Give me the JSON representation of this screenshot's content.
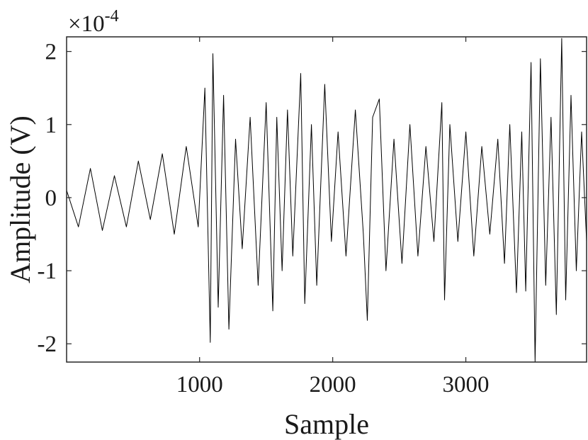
{
  "chart_data": {
    "type": "line",
    "title": "",
    "xlabel": "Sample",
    "ylabel": "Amplitude (V)",
    "y_exponent_base": "×10",
    "y_exponent": "-4",
    "xlim": [
      1,
      3907
    ],
    "ylim": [
      -2.25,
      2.2
    ],
    "xticks": [
      {
        "value": 1000,
        "label": "1000"
      },
      {
        "value": 2000,
        "label": "2000"
      },
      {
        "value": 3000,
        "label": "3000"
      }
    ],
    "yticks": [
      {
        "value": 2,
        "label": "2"
      },
      {
        "value": 1,
        "label": "1"
      },
      {
        "value": 0,
        "label": "0"
      },
      {
        "value": -1,
        "label": "-1"
      },
      {
        "value": -2,
        "label": "-2"
      }
    ],
    "grid": false,
    "box": true,
    "line_color": "#000000",
    "series": [
      {
        "x": [
          1,
          90,
          180,
          270,
          360,
          450,
          540,
          630,
          720,
          810,
          900,
          990,
          1040,
          1080,
          1100,
          1140,
          1180,
          1220,
          1270,
          1320,
          1380,
          1440,
          1500,
          1550,
          1580,
          1620,
          1660,
          1700,
          1760,
          1790,
          1840,
          1880,
          1940,
          1990,
          2040,
          2100,
          2170,
          2230,
          2260,
          2300,
          2350,
          2400,
          2460,
          2520,
          2580,
          2640,
          2700,
          2760,
          2820,
          2840,
          2880,
          2940,
          3000,
          3060,
          3120,
          3180,
          3240,
          3290,
          3330,
          3380,
          3420,
          3450,
          3490,
          3520,
          3560,
          3600,
          3640,
          3680,
          3720,
          3750,
          3790,
          3830,
          3870,
          3907
        ],
        "y": [
          0.1,
          -0.4,
          0.4,
          -0.45,
          0.3,
          -0.4,
          0.5,
          -0.3,
          0.6,
          -0.5,
          0.7,
          -0.4,
          1.5,
          -1.98,
          1.97,
          -1.5,
          1.4,
          -1.8,
          0.8,
          -0.7,
          1.1,
          -1.2,
          1.3,
          -1.55,
          1.1,
          -1.0,
          1.2,
          -0.8,
          1.7,
          -1.45,
          1.0,
          -1.2,
          1.55,
          -0.6,
          0.9,
          -0.8,
          1.2,
          -0.5,
          -1.68,
          1.1,
          1.35,
          -1.0,
          0.8,
          -0.9,
          1.0,
          -0.8,
          0.7,
          -0.6,
          1.3,
          -1.4,
          1.0,
          -0.6,
          0.9,
          -0.8,
          0.7,
          -0.5,
          0.8,
          -0.9,
          1.0,
          -1.3,
          0.9,
          -1.28,
          1.85,
          -2.25,
          1.9,
          -1.2,
          1.1,
          -1.6,
          2.18,
          -1.4,
          1.4,
          -1.0,
          0.9,
          -0.6
        ]
      }
    ]
  }
}
